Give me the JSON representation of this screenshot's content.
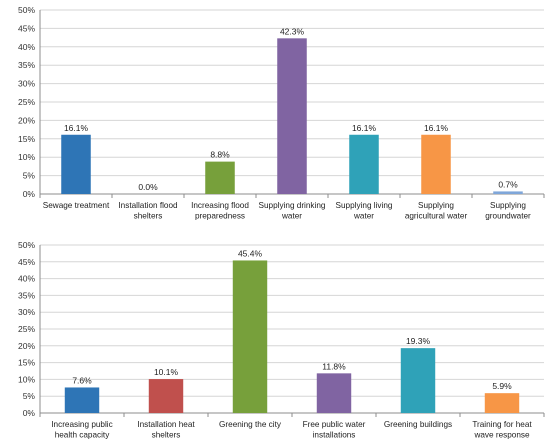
{
  "chart_data": [
    {
      "type": "bar",
      "categories": [
        [
          "Sewage treatment"
        ],
        [
          "Installation flood",
          "shelters"
        ],
        [
          "Increasing flood",
          "preparedness"
        ],
        [
          "Supplying drinking",
          "water"
        ],
        [
          "Supplying living",
          "water"
        ],
        [
          "Supplying",
          "agricultural water"
        ],
        [
          "Supplying",
          "groundwater"
        ]
      ],
      "values": [
        16.1,
        0.0,
        8.8,
        42.3,
        16.1,
        16.1,
        0.7
      ],
      "value_labels": [
        "16.1%",
        "0.0%",
        "8.8%",
        "42.3%",
        "16.1%",
        "16.1%",
        "0.7%"
      ],
      "colors": [
        "#2e75b6",
        "#c0504d",
        "#77a03b",
        "#8064a2",
        "#2fa2b8",
        "#f79646",
        "#7fa6d9"
      ],
      "yticks": [
        "0%",
        "5%",
        "10%",
        "15%",
        "20%",
        "25%",
        "30%",
        "35%",
        "40%",
        "45%",
        "50%"
      ],
      "ylim": [
        0,
        50
      ],
      "grid": true,
      "legend": "none"
    },
    {
      "type": "bar",
      "categories": [
        [
          "Increasing public",
          "health capacity"
        ],
        [
          "Installation heat",
          "shelters"
        ],
        [
          "Greening the city"
        ],
        [
          "Free public water",
          "installations"
        ],
        [
          "Greening buildings"
        ],
        [
          "Training for heat",
          "wave response"
        ]
      ],
      "values": [
        7.6,
        10.1,
        45.4,
        11.8,
        19.3,
        5.9
      ],
      "value_labels": [
        "7.6%",
        "10.1%",
        "45.4%",
        "11.8%",
        "19.3%",
        "5.9%"
      ],
      "colors": [
        "#2e75b6",
        "#c0504d",
        "#77a03b",
        "#8064a2",
        "#2fa2b8",
        "#f79646"
      ],
      "yticks": [
        "0%",
        "5%",
        "10%",
        "15%",
        "20%",
        "25%",
        "30%",
        "35%",
        "40%",
        "45%",
        "50%"
      ],
      "ylim": [
        0,
        50
      ],
      "grid": true,
      "legend": "none"
    }
  ]
}
